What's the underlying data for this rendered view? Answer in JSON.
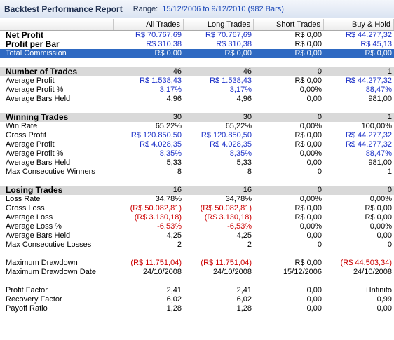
{
  "title": "Backtest Performance Report",
  "range_label": "Range:",
  "range_value": "15/12/2006 to 9/12/2010 (982 Bars)",
  "columns": [
    "",
    "All Trades",
    "Long Trades",
    "Short Trades",
    "Buy & Hold"
  ],
  "rows": [
    {
      "type": "bold",
      "label": "Net Profit",
      "values": [
        "R$ 70.767,69",
        "R$ 70.767,69",
        "R$ 0,00",
        "R$ 44.277,32"
      ],
      "colors": [
        "blue",
        "blue",
        "black",
        "blue"
      ]
    },
    {
      "type": "bold",
      "label": "Profit per Bar",
      "values": [
        "R$ 310,38",
        "R$ 310,38",
        "R$ 0,00",
        "R$ 45,13"
      ],
      "colors": [
        "blue",
        "blue",
        "black",
        "blue"
      ]
    },
    {
      "type": "selected",
      "label": "Total Commission",
      "values": [
        "R$ 0,00",
        "R$ 0,00",
        "R$ 0,00",
        "R$ 0,00"
      ],
      "colors": [
        "black",
        "black",
        "black",
        "black"
      ]
    },
    {
      "type": "blank"
    },
    {
      "type": "section",
      "label": "Number of Trades",
      "values": [
        "46",
        "46",
        "0",
        "1"
      ],
      "colors": [
        "black",
        "black",
        "black",
        "black"
      ]
    },
    {
      "type": "normal",
      "label": "Average Profit",
      "values": [
        "R$ 1.538,43",
        "R$ 1.538,43",
        "R$ 0,00",
        "R$ 44.277,32"
      ],
      "colors": [
        "blue",
        "blue",
        "black",
        "blue"
      ]
    },
    {
      "type": "normal",
      "label": "Average Profit %",
      "values": [
        "3,17%",
        "3,17%",
        "0,00%",
        "88,47%"
      ],
      "colors": [
        "blue",
        "blue",
        "black",
        "blue"
      ]
    },
    {
      "type": "normal",
      "label": "Average Bars Held",
      "values": [
        "4,96",
        "4,96",
        "0,00",
        "981,00"
      ],
      "colors": [
        "black",
        "black",
        "black",
        "black"
      ]
    },
    {
      "type": "blank"
    },
    {
      "type": "section",
      "label": "Winning Trades",
      "values": [
        "30",
        "30",
        "0",
        "1"
      ],
      "colors": [
        "black",
        "black",
        "black",
        "black"
      ]
    },
    {
      "type": "normal",
      "label": "Win Rate",
      "values": [
        "65,22%",
        "65,22%",
        "0,00%",
        "100,00%"
      ],
      "colors": [
        "black",
        "black",
        "black",
        "black"
      ]
    },
    {
      "type": "normal",
      "label": "Gross Profit",
      "values": [
        "R$ 120.850,50",
        "R$ 120.850,50",
        "R$ 0,00",
        "R$ 44.277,32"
      ],
      "colors": [
        "blue",
        "blue",
        "black",
        "blue"
      ]
    },
    {
      "type": "normal",
      "label": "Average Profit",
      "values": [
        "R$ 4.028,35",
        "R$ 4.028,35",
        "R$ 0,00",
        "R$ 44.277,32"
      ],
      "colors": [
        "blue",
        "blue",
        "black",
        "blue"
      ]
    },
    {
      "type": "normal",
      "label": "Average Profit %",
      "values": [
        "8,35%",
        "8,35%",
        "0,00%",
        "88,47%"
      ],
      "colors": [
        "blue",
        "blue",
        "black",
        "blue"
      ]
    },
    {
      "type": "normal",
      "label": "Average Bars Held",
      "values": [
        "5,33",
        "5,33",
        "0,00",
        "981,00"
      ],
      "colors": [
        "black",
        "black",
        "black",
        "black"
      ]
    },
    {
      "type": "normal",
      "label": "Max Consecutive Winners",
      "values": [
        "8",
        "8",
        "0",
        "1"
      ],
      "colors": [
        "black",
        "black",
        "black",
        "black"
      ]
    },
    {
      "type": "blank"
    },
    {
      "type": "section",
      "label": "Losing Trades",
      "values": [
        "16",
        "16",
        "0",
        "0"
      ],
      "colors": [
        "black",
        "black",
        "black",
        "black"
      ]
    },
    {
      "type": "normal",
      "label": "Loss Rate",
      "values": [
        "34,78%",
        "34,78%",
        "0,00%",
        "0,00%"
      ],
      "colors": [
        "black",
        "black",
        "black",
        "black"
      ]
    },
    {
      "type": "normal",
      "label": "Gross Loss",
      "values": [
        "(R$ 50.082,81)",
        "(R$ 50.082,81)",
        "R$ 0,00",
        "R$ 0,00"
      ],
      "colors": [
        "red",
        "red",
        "black",
        "black"
      ]
    },
    {
      "type": "normal",
      "label": "Average Loss",
      "values": [
        "(R$ 3.130,18)",
        "(R$ 3.130,18)",
        "R$ 0,00",
        "R$ 0,00"
      ],
      "colors": [
        "red",
        "red",
        "black",
        "black"
      ]
    },
    {
      "type": "normal",
      "label": "Average Loss %",
      "values": [
        "-6,53%",
        "-6,53%",
        "0,00%",
        "0,00%"
      ],
      "colors": [
        "red",
        "red",
        "black",
        "black"
      ]
    },
    {
      "type": "normal",
      "label": "Average Bars Held",
      "values": [
        "4,25",
        "4,25",
        "0,00",
        "0,00"
      ],
      "colors": [
        "black",
        "black",
        "black",
        "black"
      ]
    },
    {
      "type": "normal",
      "label": "Max Consecutive Losses",
      "values": [
        "2",
        "2",
        "0",
        "0"
      ],
      "colors": [
        "black",
        "black",
        "black",
        "black"
      ]
    },
    {
      "type": "blank"
    },
    {
      "type": "normal",
      "label": "Maximum Drawdown",
      "values": [
        "(R$ 11.751,04)",
        "(R$ 11.751,04)",
        "R$ 0,00",
        "(R$ 44.503,34)"
      ],
      "colors": [
        "red",
        "red",
        "black",
        "red"
      ]
    },
    {
      "type": "normal",
      "label": "Maximum Drawdown Date",
      "values": [
        "24/10/2008",
        "24/10/2008",
        "15/12/2006",
        "24/10/2008"
      ],
      "colors": [
        "black",
        "black",
        "black",
        "black"
      ]
    },
    {
      "type": "blank"
    },
    {
      "type": "normal",
      "label": "Profit Factor",
      "values": [
        "2,41",
        "2,41",
        "0,00",
        "+Infinito"
      ],
      "colors": [
        "black",
        "black",
        "black",
        "black"
      ]
    },
    {
      "type": "normal",
      "label": "Recovery Factor",
      "values": [
        "6,02",
        "6,02",
        "0,00",
        "0,99"
      ],
      "colors": [
        "black",
        "black",
        "black",
        "black"
      ]
    },
    {
      "type": "normal",
      "label": "Payoff Ratio",
      "values": [
        "1,28",
        "1,28",
        "0,00",
        "0,00"
      ],
      "colors": [
        "black",
        "black",
        "black",
        "black"
      ]
    }
  ]
}
